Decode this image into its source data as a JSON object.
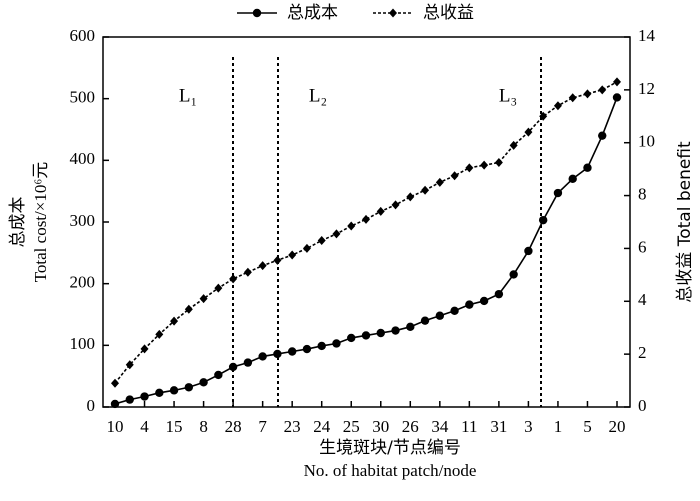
{
  "chart_data": {
    "type": "line",
    "legend": "top",
    "xlabel": [
      "生境斑块/节点编号",
      "No. of habitat patch/node"
    ],
    "ylabel": [
      "总成本",
      "Total cost/×10⁶元"
    ],
    "y2label": "总收益 Total benefit",
    "annotations": [
      "L₁",
      "L₂",
      "L₃"
    ],
    "categories": [
      "10",
      null,
      "4",
      null,
      "15",
      null,
      "8",
      null,
      "28",
      null,
      "7",
      null,
      "23",
      null,
      "24",
      null,
      "25",
      null,
      "30",
      null,
      "26",
      null,
      "34",
      null,
      "11",
      null,
      "31",
      null,
      "3",
      null,
      "1",
      null,
      "5",
      null,
      "20"
    ],
    "ylim": [
      0,
      600
    ],
    "yticks": [
      0,
      100,
      200,
      300,
      400,
      500,
      600
    ],
    "y2lim": [
      0,
      14
    ],
    "y2ticks": [
      0,
      2,
      4,
      6,
      8,
      10,
      12,
      14
    ],
    "series": [
      {
        "name": "总成本",
        "color": "#000000",
        "linestyle": "solid",
        "marker": "circle",
        "axis": "y",
        "values": [
          5,
          12,
          17,
          23,
          27,
          32,
          40,
          52,
          65,
          72,
          82,
          86,
          90,
          94,
          99,
          103,
          112,
          116,
          120,
          124,
          130,
          140,
          148,
          156,
          166,
          172,
          183,
          215,
          253,
          303,
          347,
          370,
          388,
          440,
          502
        ]
      },
      {
        "name": "总收益",
        "color": "#000000",
        "linestyle": "dashed",
        "marker": "diamond",
        "axis": "y2",
        "values": [
          0.9,
          1.6,
          2.2,
          2.75,
          3.25,
          3.7,
          4.1,
          4.5,
          4.85,
          5.1,
          5.35,
          5.55,
          5.75,
          6.0,
          6.3,
          6.55,
          6.85,
          7.1,
          7.4,
          7.65,
          7.95,
          8.2,
          8.5,
          8.75,
          9.05,
          9.15,
          9.25,
          9.9,
          10.4,
          11.0,
          11.4,
          11.7,
          11.85,
          12.0,
          12.3
        ]
      }
    ]
  }
}
